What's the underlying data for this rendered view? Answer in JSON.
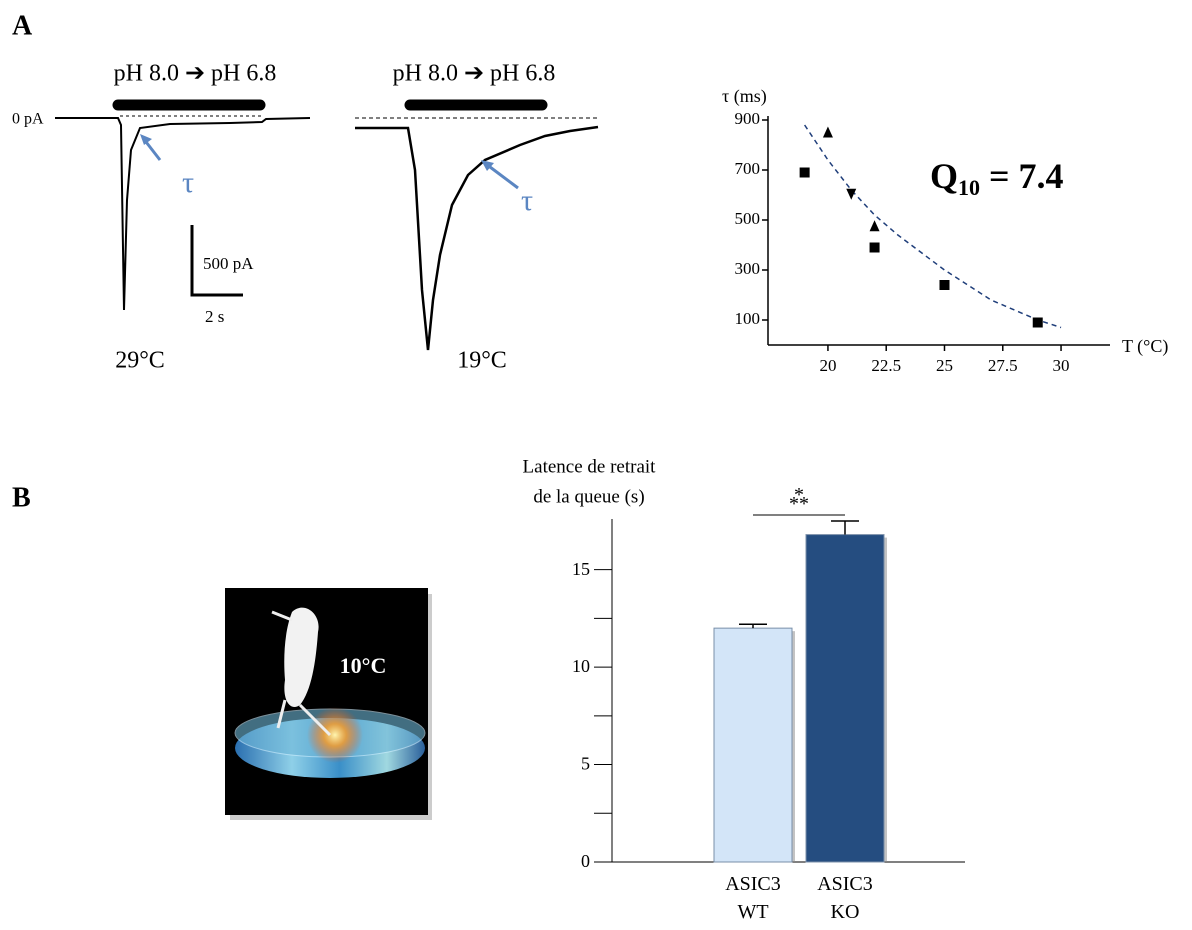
{
  "panel_a": {
    "label": "A",
    "baseline": "0 pA",
    "scale_y": "500 pA",
    "scale_x": "2 s",
    "traces": [
      {
        "stimulus": "pH 8.0 ➔ pH 6.8",
        "temperature": "29°C",
        "tau": "τ"
      },
      {
        "stimulus": "pH 8.0 ➔ pH 6.8",
        "temperature": "19°C",
        "tau": "τ"
      }
    ]
  },
  "panel_b": {
    "label": "B",
    "image_label": "10°C"
  },
  "chart_data": [
    {
      "type": "scatter",
      "xlabel": "T (°C)",
      "ylabel": "τ (ms)",
      "annotation": {
        "main": "Q",
        "sub": "10",
        "rest": " = 7.4"
      },
      "xlim": [
        17.3,
        32.1
      ],
      "ylim": [
        0,
        900
      ],
      "xticks": [
        20,
        22.5,
        25,
        27.5,
        30
      ],
      "yticks": [
        900,
        700,
        500,
        300,
        100
      ],
      "series": [
        {
          "marker": "square",
          "color": "#000000",
          "x": [
            19,
            22,
            25,
            29
          ],
          "values": [
            690,
            390,
            240,
            90
          ]
        },
        {
          "marker": "triangle-up",
          "color": "#000000",
          "x": [
            20,
            22
          ],
          "values": [
            850,
            475
          ]
        },
        {
          "marker": "triangle-down",
          "color": "#000000",
          "x": [
            21
          ],
          "values": [
            605
          ]
        }
      ],
      "fit": {
        "color": "#1f3e7a",
        "x": [
          19,
          20,
          21,
          22,
          23,
          25,
          27,
          29,
          30
        ],
        "values": [
          880,
          740,
          620,
          520,
          440,
          300,
          180,
          100,
          70
        ]
      }
    },
    {
      "type": "bar",
      "ylabel": [
        "Latence de retrait",
        "de la queue (s)"
      ],
      "categories": [
        "ASIC3 WT",
        "ASIC3 KO"
      ],
      "values": [
        12.0,
        16.8
      ],
      "errors": [
        0.2,
        0.7
      ],
      "colors": [
        "#d3e5f8",
        "#254d80"
      ],
      "ylim": [
        0,
        17.6
      ],
      "yticks": [
        0,
        5,
        10,
        15
      ],
      "minor_yticks": [
        2.5,
        7.5,
        12.5
      ],
      "significance": "***"
    }
  ]
}
